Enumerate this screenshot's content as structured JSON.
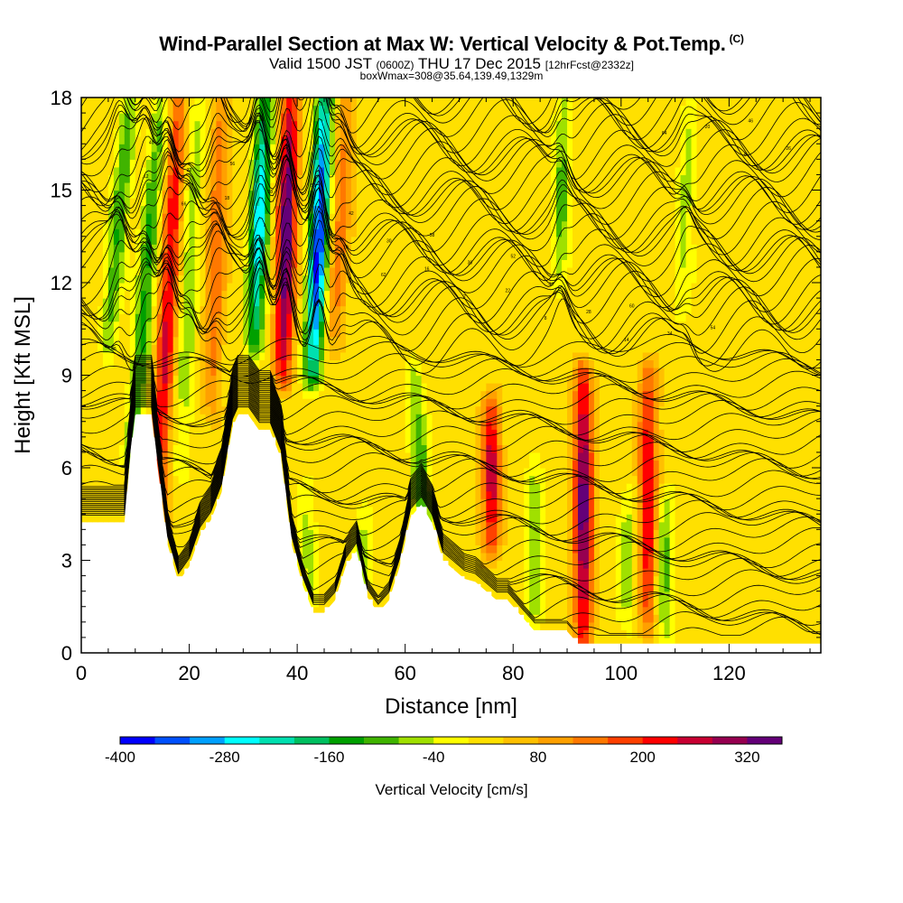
{
  "header": {
    "title": "Wind-Parallel Section at Max W: Vertical Velocity & Pot.Temp.",
    "title_tag": "(C)",
    "valid_prefix": "Valid 1500 JST",
    "valid_utc": "(0600Z)",
    "valid_date": "THU 17 Dec 2015",
    "forecast": "[12hrFcst@2332z]",
    "box_info": "boxWmax=308@35.64,139.49,1329m"
  },
  "colors": {
    "terrain": "#ffffff",
    "contour": "#000000",
    "frame": "#000000"
  },
  "chart_data": {
    "type": "heatmap",
    "title": "Wind-Parallel Section at Max W: Vertical Velocity & Pot.Temp.",
    "xlabel": "Distance [nm]",
    "ylabel": "Height [Kft MSL]",
    "xlim": [
      0,
      137
    ],
    "ylim": [
      0,
      18
    ],
    "xticks": [
      0,
      20,
      40,
      60,
      80,
      100,
      120
    ],
    "yticks": [
      0,
      3,
      6,
      9,
      12,
      15,
      18
    ],
    "colorbar": {
      "label": "Vertical Velocity [cm/s]",
      "levels": [
        -400,
        -360,
        -320,
        -280,
        -240,
        -200,
        -160,
        -120,
        -80,
        -40,
        0,
        40,
        80,
        120,
        160,
        200,
        240,
        280,
        320,
        360
      ],
      "tick_labels": [
        -400,
        -280,
        -160,
        -40,
        80,
        200,
        320
      ],
      "colors": [
        "#0000ff",
        "#0050ff",
        "#00a0ff",
        "#00ffff",
        "#00e0b0",
        "#00c060",
        "#00a000",
        "#40b400",
        "#a0e000",
        "#ffff00",
        "#ffe000",
        "#ffc000",
        "#ffa000",
        "#ff7800",
        "#ff4000",
        "#ff0000",
        "#c80032",
        "#960050",
        "#640078"
      ]
    },
    "velocity_features": [
      {
        "x": 7,
        "z_min": 10,
        "z_max": 18,
        "w": -150,
        "tilt": 0.5
      },
      {
        "x": 12,
        "z_min": 6,
        "z_max": 18,
        "w": -160,
        "tilt": 0.45
      },
      {
        "x": 16,
        "z_min": 4,
        "z_max": 18,
        "w": 230,
        "tilt": 0.3
      },
      {
        "x": 20,
        "z_min": 6,
        "z_max": 18,
        "w": -100,
        "tilt": 0.25
      },
      {
        "x": 25,
        "z_min": 8,
        "z_max": 18,
        "w": 140,
        "tilt": 0.2
      },
      {
        "x": 33,
        "z_min": 10,
        "z_max": 18,
        "w": -300,
        "tilt": 0.25
      },
      {
        "x": 38,
        "z_min": 9,
        "z_max": 18,
        "w": 340,
        "tilt": 0.15
      },
      {
        "x": 44,
        "z_min": 9,
        "z_max": 18,
        "w": -400,
        "tilt": 0.25
      },
      {
        "x": 48,
        "z_min": 10,
        "z_max": 18,
        "w": 120,
        "tilt": 0.3
      },
      {
        "x": 42,
        "z_min": 1.3,
        "z_max": 5.5,
        "w": -80,
        "tilt": 0
      },
      {
        "x": 52,
        "z_min": 1.5,
        "z_max": 4.5,
        "w": -90,
        "tilt": 0
      },
      {
        "x": 63,
        "z_min": 2,
        "z_max": 9,
        "w": -150,
        "tilt": -0.4
      },
      {
        "x": 76,
        "z_min": 3.5,
        "z_max": 8,
        "w": 250,
        "tilt": 0
      },
      {
        "x": 84,
        "z_min": 1,
        "z_max": 6,
        "w": -110,
        "tilt": 0
      },
      {
        "x": 89,
        "z_min": 12,
        "z_max": 18,
        "w": -120,
        "tilt": 0.1
      },
      {
        "x": 93,
        "z_min": 0.5,
        "z_max": 9,
        "w": 320,
        "tilt": 0
      },
      {
        "x": 101,
        "z_min": 1,
        "z_max": 5,
        "w": -100,
        "tilt": 0
      },
      {
        "x": 105,
        "z_min": 1,
        "z_max": 9,
        "w": 230,
        "tilt": 0
      },
      {
        "x": 108,
        "z_min": 0.5,
        "z_max": 5,
        "w": -130,
        "tilt": 0
      },
      {
        "x": 112,
        "z_min": 11,
        "z_max": 18,
        "w": -80,
        "tilt": 0.25
      }
    ],
    "terrain_profile": {
      "distance": [
        0,
        8,
        9,
        10,
        13,
        14,
        16,
        18,
        20,
        22,
        24,
        26,
        28,
        29,
        31,
        33,
        35,
        37,
        39,
        41,
        43,
        45,
        47,
        49,
        51,
        53,
        55,
        57,
        59,
        61,
        63,
        65,
        67,
        69,
        71,
        73,
        75,
        77,
        79,
        81,
        84,
        86,
        88,
        90,
        92,
        137
      ],
      "height": [
        4.2,
        4.2,
        6.2,
        7.7,
        7.7,
        6.2,
        3.5,
        2.3,
        2.8,
        3.8,
        4.3,
        5.2,
        7.3,
        7.7,
        7.7,
        7.2,
        7.2,
        6.3,
        3.5,
        2.2,
        1.3,
        1.3,
        1.7,
        2.8,
        3.3,
        1.8,
        1.3,
        1.7,
        2.8,
        4.4,
        4.8,
        4.2,
        3.0,
        2.7,
        2.4,
        2.3,
        2.0,
        1.7,
        1.7,
        1.3,
        0.7,
        0.7,
        0.7,
        0.7,
        0.3,
        0.3
      ]
    },
    "theta_contours": {
      "count": 66,
      "labels": [
        "48",
        "50",
        "52",
        "54",
        "56",
        "58",
        "60",
        "40",
        "42",
        "44",
        "46",
        "38",
        "36",
        "34",
        "32",
        "30",
        "28",
        "26",
        "24",
        "22",
        "20",
        "18",
        "16",
        "14",
        "12",
        "10",
        "8",
        "6",
        "4",
        "2",
        "64",
        "66",
        "62"
      ]
    }
  }
}
